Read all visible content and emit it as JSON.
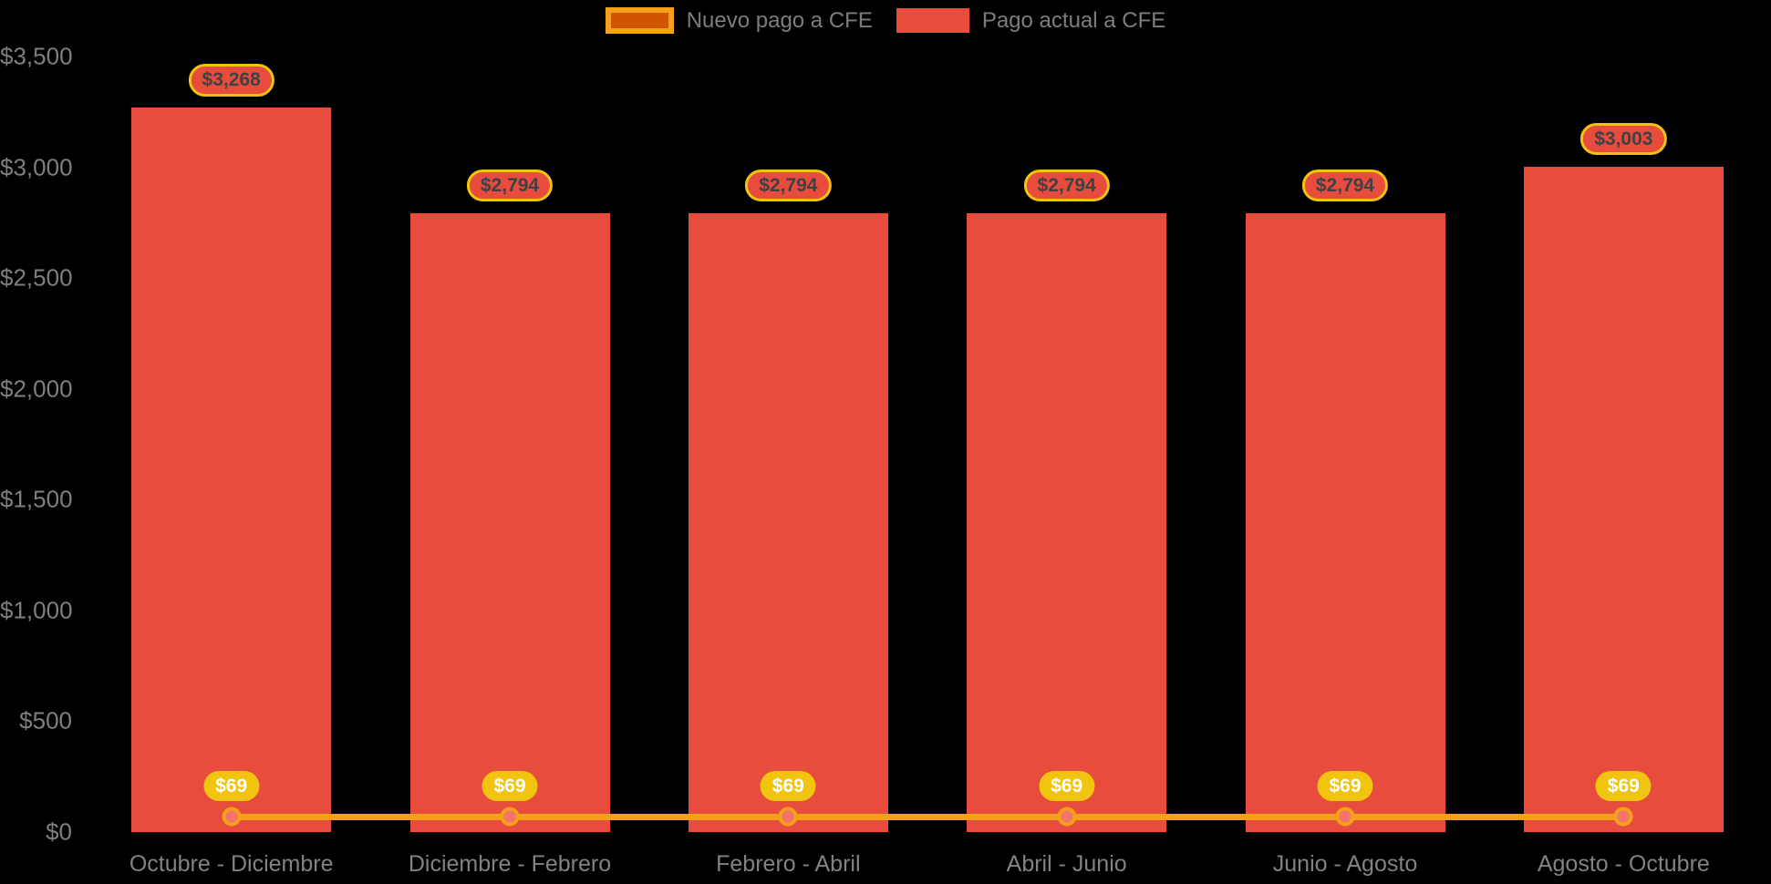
{
  "chart_data": {
    "type": "bar",
    "title": "",
    "categories": [
      "Octubre - Diciembre",
      "Diciembre - Febrero",
      "Febrero - Abril",
      "Abril - Junio",
      "Junio - Agosto",
      "Agosto - Octubre"
    ],
    "series": [
      {
        "name": "Nuevo pago a CFE",
        "type": "line",
        "values": [
          69,
          69,
          69,
          69,
          69,
          69
        ],
        "labels": [
          "$69",
          "$69",
          "$69",
          "$69",
          "$69",
          "$69"
        ],
        "color": "#F5A019",
        "marker_fill": "#F4736C",
        "label_bg": "#F1C40F",
        "label_text_color": "#FFFFFF"
      },
      {
        "name": "Pago actual a CFE",
        "type": "bar",
        "values": [
          3268,
          2794,
          2794,
          2794,
          2794,
          3003
        ],
        "labels": [
          "$3,268",
          "$2,794",
          "$2,794",
          "$2,794",
          "$2,794",
          "$3,003"
        ],
        "color": "#E74C3C",
        "label_bg": "#E74C3C",
        "label_border": "#F1C40F",
        "label_text_color": "#3F4145"
      }
    ],
    "y_ticks": [
      {
        "value": 0,
        "label": "$0"
      },
      {
        "value": 500,
        "label": "$500"
      },
      {
        "value": 1000,
        "label": "$1,000"
      },
      {
        "value": 1500,
        "label": "$1,500"
      },
      {
        "value": 2000,
        "label": "$2,000"
      },
      {
        "value": 2500,
        "label": "$2,500"
      },
      {
        "value": 3000,
        "label": "$3,000"
      },
      {
        "value": 3500,
        "label": "$3,500"
      }
    ],
    "ylim": [
      0,
      3500
    ],
    "grid": false,
    "legend_position": "top",
    "background": "#000000",
    "axis_text_color": "#7F7F7F"
  },
  "legend": {
    "items": [
      {
        "label": "Nuevo pago a CFE",
        "swatch_fill": "#D35400",
        "swatch_border": "#F5A019"
      },
      {
        "label": "Pago actual a CFE",
        "swatch_fill": "#E74C3C",
        "swatch_border": "#E74C3C"
      }
    ]
  }
}
